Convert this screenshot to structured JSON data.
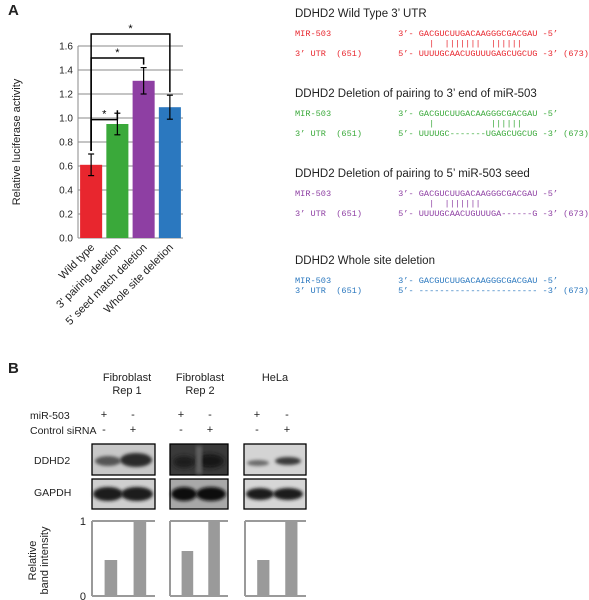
{
  "panels": {
    "a_label": "A",
    "b_label": "B"
  },
  "colors": {
    "red": "#e8262e",
    "green": "#3aa93a",
    "purple": "#8e3fa3",
    "blue": "#2b78bf",
    "gray": "#9a9a9a"
  },
  "chart_data": [
    {
      "type": "bar",
      "categories": [
        "Wild type",
        "3' pairing deletion",
        "5' seed match deletion",
        "Whole site deletion"
      ],
      "values": [
        0.61,
        0.95,
        1.31,
        1.09
      ],
      "errors": [
        0.09,
        0.09,
        0.11,
        0.1
      ],
      "bar_colors": [
        "#e8262e",
        "#3aa93a",
        "#8e3fa3",
        "#2b78bf"
      ],
      "ylabel": "Relative luciferase activity",
      "ylim": [
        0,
        1.6
      ],
      "yticks": [
        "0.0",
        "0.2",
        "0.4",
        "0.6",
        "0.8",
        "1.0",
        "1.2",
        "1.4",
        "1.6"
      ],
      "grid": true,
      "significance_marks": [
        "*",
        "*",
        "*"
      ]
    },
    {
      "type": "bar",
      "panel": "Fibroblast Rep 1",
      "categories": [
        "+/-",
        "-/+"
      ],
      "values": [
        0.48,
        1.0
      ],
      "ylim": [
        0,
        1
      ],
      "yticks": [
        "0",
        "1"
      ],
      "ylabel": "Relative band intensity"
    },
    {
      "type": "bar",
      "panel": "Fibroblast Rep 2",
      "categories": [
        "+/-",
        "-/+"
      ],
      "values": [
        0.6,
        1.0
      ],
      "ylim": [
        0,
        1
      ],
      "yticks": [
        "0",
        "1"
      ]
    },
    {
      "type": "bar",
      "panel": "HeLa",
      "categories": [
        "+/-",
        "-/+"
      ],
      "values": [
        0.48,
        1.0
      ],
      "ylim": [
        0,
        1
      ],
      "yticks": [
        "0",
        "1"
      ]
    }
  ],
  "sequences": [
    {
      "title": "DDHD2 Wild Type 3’ UTR",
      "color": "#e8262e",
      "line1": "MIR-503             3’- GACGUCUUGACAAGGGCGACGAU -5’",
      "line2": "                          |  |||||||  ||||||",
      "line3": "3’ UTR  (651)       5’- UUUUGCAACUGUUUGAGCUGCUG -3’ (673)"
    },
    {
      "title": "DDHD2 Deletion of pairing to 3’ end of miR-503",
      "color": "#3aa93a",
      "line1": "MIR-503             3’- GACGUCUUGACAAGGGCGACGAU -5’",
      "line2": "                          |           ||||||",
      "line3": "3’ UTR  (651)       5’- UUUUGC-------UGAGCUGCUG -3’ (673)"
    },
    {
      "title": "DDHD2 Deletion of pairing to 5’ miR-503 seed",
      "color": "#8e3fa3",
      "line1": "MIR-503             3’- GACGUCUUGACAAGGGCGACGAU -5’",
      "line2": "                          |  |||||||",
      "line3": "3’ UTR  (651)       5’- UUUUGCAACUGUUUGA------G -3’ (673)"
    },
    {
      "title": "DDHD2 Whole site deletion",
      "color": "#2b78bf",
      "line1": "MIR-503             3’- GACGUCUUGACAAGGGCGACGAU -5’",
      "line2": "",
      "line3": "3’ UTR  (651)       5’- ----------------------- -3’ (673)"
    }
  ],
  "blot": {
    "columns": [
      {
        "title1": "Fibroblast",
        "title2": "Rep 1"
      },
      {
        "title1": "Fibroblast",
        "title2": "Rep 2"
      },
      {
        "title1": "HeLa",
        "title2": ""
      }
    ],
    "row_mir": "miR-503",
    "row_ctrl": "Control siRNA",
    "mir_marks": [
      "+",
      "-"
    ],
    "ctrl_marks": [
      "-",
      "+"
    ],
    "ddhd2_label": "DDHD2",
    "gapdh_label": "GAPDH"
  }
}
